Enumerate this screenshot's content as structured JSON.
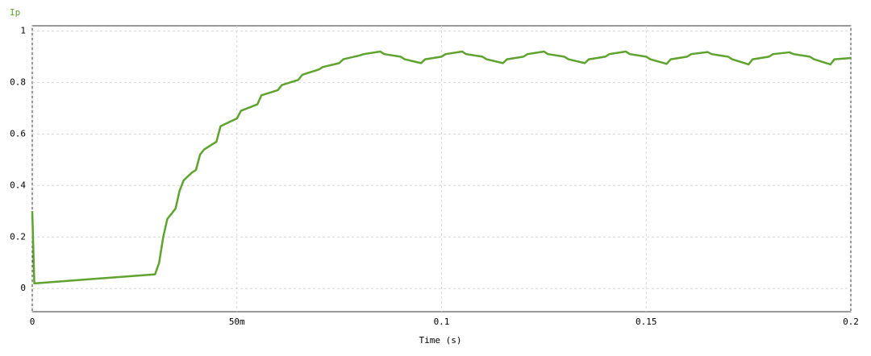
{
  "chart_data": {
    "type": "line",
    "x_label": "Time (s)",
    "x": [
      0,
      0.0005,
      0.03,
      0.031,
      0.032,
      0.033,
      0.035,
      0.036,
      0.037,
      0.039,
      0.04,
      0.041,
      0.042,
      0.045,
      0.046,
      0.048,
      0.05,
      0.051,
      0.055,
      0.056,
      0.06,
      0.061,
      0.065,
      0.066,
      0.07,
      0.071,
      0.075,
      0.076,
      0.08,
      0.081,
      0.085,
      0.086,
      0.09,
      0.091,
      0.095,
      0.096,
      0.1,
      0.101,
      0.105,
      0.106,
      0.11,
      0.111,
      0.115,
      0.116,
      0.12,
      0.121,
      0.125,
      0.126,
      0.13,
      0.131,
      0.135,
      0.136,
      0.14,
      0.141,
      0.145,
      0.146,
      0.15,
      0.151,
      0.155,
      0.156,
      0.16,
      0.161,
      0.165,
      0.166,
      0.17,
      0.171,
      0.175,
      0.176,
      0.18,
      0.181,
      0.185,
      0.186,
      0.19,
      0.191,
      0.195,
      0.196,
      0.2
    ],
    "series": [
      {
        "name": "Ip",
        "color": "#5ea32e",
        "values": [
          0.3,
          0.02,
          0.055,
          0.1,
          0.2,
          0.27,
          0.31,
          0.38,
          0.42,
          0.45,
          0.46,
          0.52,
          0.54,
          0.57,
          0.63,
          0.645,
          0.66,
          0.69,
          0.715,
          0.75,
          0.77,
          0.79,
          0.81,
          0.83,
          0.85,
          0.86,
          0.875,
          0.89,
          0.905,
          0.91,
          0.92,
          0.91,
          0.9,
          0.89,
          0.875,
          0.89,
          0.9,
          0.91,
          0.92,
          0.91,
          0.9,
          0.89,
          0.875,
          0.89,
          0.9,
          0.91,
          0.92,
          0.91,
          0.9,
          0.89,
          0.875,
          0.89,
          0.9,
          0.91,
          0.92,
          0.91,
          0.9,
          0.89,
          0.872,
          0.89,
          0.9,
          0.91,
          0.918,
          0.91,
          0.9,
          0.89,
          0.87,
          0.89,
          0.9,
          0.91,
          0.917,
          0.91,
          0.9,
          0.89,
          0.87,
          0.89,
          0.895
        ]
      }
    ],
    "xlim": [
      0,
      0.2
    ],
    "xticks": [
      0,
      {
        "value": 0.05,
        "label": "50m"
      },
      0.1,
      0.15,
      0.2
    ],
    "ylim": [
      -0.09,
      1.02
    ],
    "yticks": [
      0,
      0.2,
      0.4,
      0.6,
      0.8,
      1
    ],
    "grid": true
  }
}
